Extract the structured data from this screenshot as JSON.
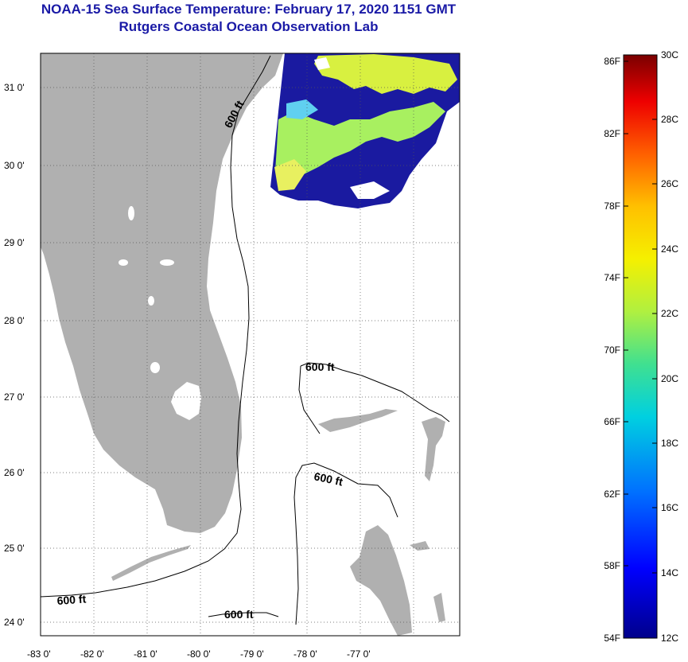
{
  "header": {
    "title": "NOAA-15 Sea Surface Temperature:  February 17, 2020 1151 GMT",
    "subtitle": "Rutgers Coastal Ocean Observation Lab"
  },
  "map": {
    "lon_ticks": [
      "-83 0'",
      "-82 0'",
      "-81 0'",
      "-80 0'",
      "-79 0'",
      "-78 0'",
      "-77 0'"
    ],
    "lat_ticks": [
      "31 0'",
      "30 0'",
      "29 0'",
      "28 0'",
      "27 0'",
      "26 0'",
      "25 0'",
      "24 0'"
    ],
    "contour_labels": [
      "600 ft",
      "600 ft",
      "600 ft",
      "600 ft",
      "600 ft"
    ],
    "land_color": "#b0b0b0",
    "grid": "dotted"
  },
  "colorbar": {
    "fahrenheit": [
      "86F",
      "82F",
      "78F",
      "74F",
      "70F",
      "66F",
      "62F",
      "58F",
      "54F"
    ],
    "celsius": [
      "30C",
      "28C",
      "26C",
      "24C",
      "22C",
      "20C",
      "18C",
      "16C",
      "14C",
      "12C"
    ],
    "colors": [
      "#00008b",
      "#0000ff",
      "#0080ff",
      "#00e0e0",
      "#40e0a0",
      "#a0f060",
      "#f0f000",
      "#ffc000",
      "#ff6000",
      "#ff0000",
      "#8b0000"
    ]
  }
}
